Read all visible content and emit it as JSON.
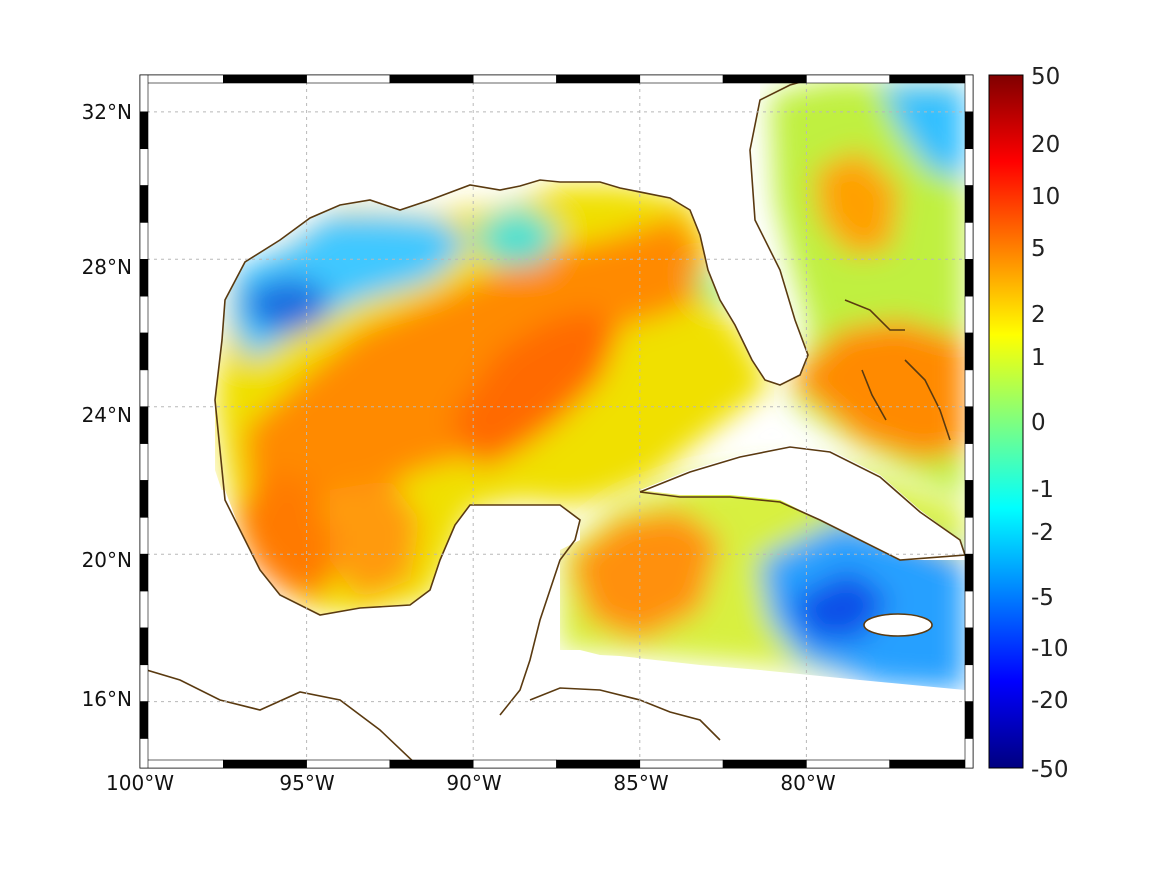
{
  "map": {
    "longitude_labels": [
      "100°W",
      "95°W",
      "90°W",
      "85°W",
      "80°W"
    ],
    "longitudes": [
      -100,
      -95,
      -90,
      -85,
      -80
    ],
    "latitude_labels": [
      "32°N",
      "28°N",
      "24°N",
      "20°N",
      "16°N"
    ],
    "latitudes": [
      32,
      28,
      24,
      20,
      16
    ],
    "extent": {
      "lon_min": -100,
      "lon_max": -75,
      "lat_min": 14.2,
      "lat_max": 33
    },
    "coastline_color": "#5a3a10",
    "grid": true,
    "colormap": "jet",
    "colorbar": {
      "placement": "right",
      "labels": [
        "50",
        "20",
        "10",
        "5",
        "2",
        "1",
        "0",
        "-1",
        "-2",
        "-5",
        "-10",
        "-20",
        "-50"
      ],
      "top_color": "#800000",
      "bottom_color": "#000080"
    }
  }
}
